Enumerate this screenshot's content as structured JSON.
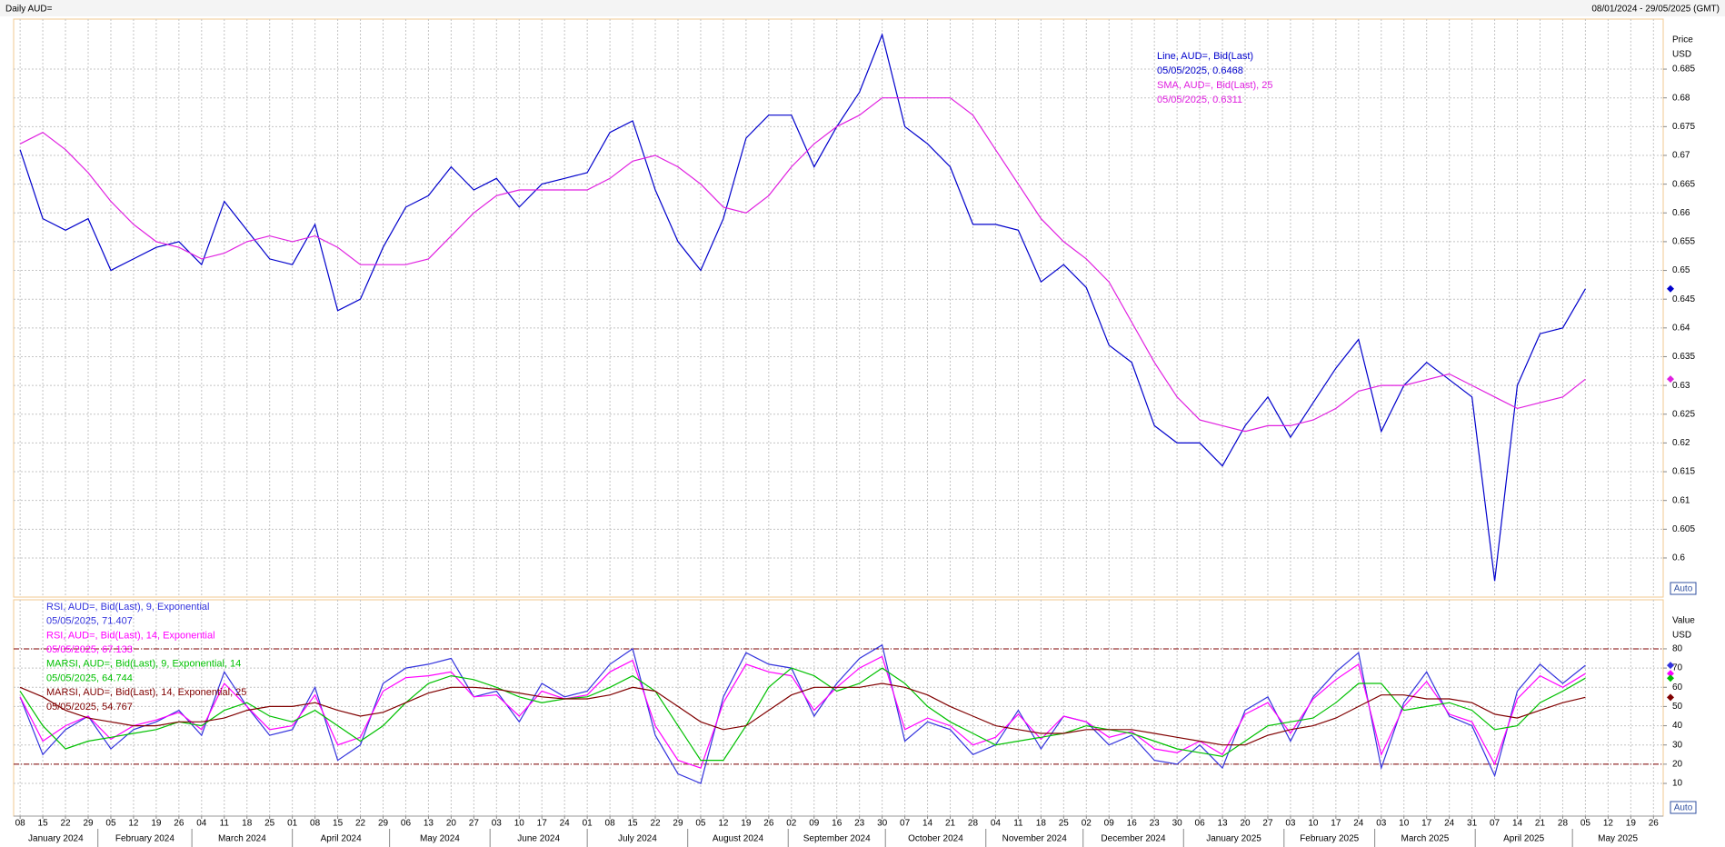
{
  "header": {
    "title": "Daily AUD=",
    "range": "08/01/2024 - 29/05/2025 (GMT)"
  },
  "chart_data": [
    {
      "type": "line",
      "ylabel": "Price",
      "yunit": "USD",
      "auto_button": "Auto",
      "xlim": [
        "2024-01-06",
        "2025-05-29"
      ],
      "x": [
        "2024-01-08",
        "2024-01-15",
        "2024-01-22",
        "2024-01-29",
        "2024-02-05",
        "2024-02-12",
        "2024-02-19",
        "2024-02-26",
        "2024-03-04",
        "2024-03-11",
        "2024-03-18",
        "2024-03-25",
        "2024-04-01",
        "2024-04-08",
        "2024-04-15",
        "2024-04-22",
        "2024-04-29",
        "2024-05-06",
        "2024-05-13",
        "2024-05-20",
        "2024-05-27",
        "2024-06-03",
        "2024-06-10",
        "2024-06-17",
        "2024-06-24",
        "2024-07-01",
        "2024-07-08",
        "2024-07-15",
        "2024-07-22",
        "2024-07-29",
        "2024-08-05",
        "2024-08-12",
        "2024-08-19",
        "2024-08-26",
        "2024-09-02",
        "2024-09-09",
        "2024-09-16",
        "2024-09-23",
        "2024-09-30",
        "2024-10-07",
        "2024-10-14",
        "2024-10-21",
        "2024-10-28",
        "2024-11-04",
        "2024-11-11",
        "2024-11-18",
        "2024-11-25",
        "2024-12-02",
        "2024-12-09",
        "2024-12-16",
        "2024-12-23",
        "2024-12-30",
        "2025-01-06",
        "2025-01-13",
        "2025-01-20",
        "2025-01-27",
        "2025-02-03",
        "2025-02-10",
        "2025-02-17",
        "2025-02-24",
        "2025-03-03",
        "2025-03-10",
        "2025-03-17",
        "2025-03-24",
        "2025-03-31",
        "2025-04-07",
        "2025-04-14",
        "2025-04-21",
        "2025-04-28",
        "2025-05-05"
      ],
      "ylim": [
        0.5932,
        0.6937
      ],
      "yticks": [
        0.6,
        0.605,
        0.61,
        0.615,
        0.62,
        0.625,
        0.63,
        0.635,
        0.64,
        0.645,
        0.65,
        0.655,
        0.66,
        0.665,
        0.67,
        0.675,
        0.68,
        0.685
      ],
      "grid": true,
      "series": [
        {
          "name": "Line, AUD=, Bid(Last)",
          "legend_value": "05/05/2025, 0.6468",
          "color": "#0000cc",
          "values": [
            0.671,
            0.659,
            0.657,
            0.659,
            0.65,
            0.652,
            0.654,
            0.655,
            0.651,
            0.662,
            0.657,
            0.652,
            0.651,
            0.658,
            0.643,
            0.645,
            0.654,
            0.661,
            0.663,
            0.668,
            0.664,
            0.666,
            0.661,
            0.665,
            0.666,
            0.667,
            0.674,
            0.676,
            0.664,
            0.655,
            0.65,
            0.659,
            0.673,
            0.677,
            0.677,
            0.668,
            0.675,
            0.681,
            0.691,
            0.675,
            0.672,
            0.668,
            0.658,
            0.658,
            0.657,
            0.648,
            0.651,
            0.647,
            0.637,
            0.634,
            0.623,
            0.62,
            0.62,
            0.616,
            0.623,
            0.628,
            0.621,
            0.627,
            0.633,
            0.638,
            0.622,
            0.63,
            0.634,
            0.631,
            0.628,
            0.596,
            0.63,
            0.639,
            0.64,
            0.6468
          ]
        },
        {
          "name": "SMA, AUD=, Bid(Last),  25",
          "legend_value": "05/05/2025, 0.6311",
          "color": "#e020e0",
          "values": [
            0.672,
            0.674,
            0.671,
            0.667,
            0.662,
            0.658,
            0.655,
            0.654,
            0.652,
            0.653,
            0.655,
            0.656,
            0.655,
            0.656,
            0.654,
            0.651,
            0.651,
            0.651,
            0.652,
            0.656,
            0.66,
            0.663,
            0.664,
            0.664,
            0.664,
            0.664,
            0.666,
            0.669,
            0.67,
            0.668,
            0.665,
            0.661,
            0.66,
            0.663,
            0.668,
            0.672,
            0.675,
            0.677,
            0.68,
            0.68,
            0.68,
            0.68,
            0.677,
            0.671,
            0.665,
            0.659,
            0.655,
            0.652,
            0.648,
            0.641,
            0.634,
            0.628,
            0.624,
            0.623,
            0.622,
            0.623,
            0.623,
            0.624,
            0.626,
            0.629,
            0.63,
            0.63,
            0.631,
            0.632,
            0.63,
            0.628,
            0.626,
            0.627,
            0.628,
            0.6311
          ]
        }
      ]
    },
    {
      "type": "line",
      "ylabel": "Value",
      "yunit": "USD",
      "auto_button": "Auto",
      "xlim": [
        "2024-01-06",
        "2025-05-29"
      ],
      "x": [
        "2024-01-08",
        "2024-01-15",
        "2024-01-22",
        "2024-01-29",
        "2024-02-05",
        "2024-02-12",
        "2024-02-19",
        "2024-02-26",
        "2024-03-04",
        "2024-03-11",
        "2024-03-18",
        "2024-03-25",
        "2024-04-01",
        "2024-04-08",
        "2024-04-15",
        "2024-04-22",
        "2024-04-29",
        "2024-05-06",
        "2024-05-13",
        "2024-05-20",
        "2024-05-27",
        "2024-06-03",
        "2024-06-10",
        "2024-06-17",
        "2024-06-24",
        "2024-07-01",
        "2024-07-08",
        "2024-07-15",
        "2024-07-22",
        "2024-07-29",
        "2024-08-05",
        "2024-08-12",
        "2024-08-19",
        "2024-08-26",
        "2024-09-02",
        "2024-09-09",
        "2024-09-16",
        "2024-09-23",
        "2024-09-30",
        "2024-10-07",
        "2024-10-14",
        "2024-10-21",
        "2024-10-28",
        "2024-11-04",
        "2024-11-11",
        "2024-11-18",
        "2024-11-25",
        "2024-12-02",
        "2024-12-09",
        "2024-12-16",
        "2024-12-23",
        "2024-12-30",
        "2025-01-06",
        "2025-01-13",
        "2025-01-20",
        "2025-01-27",
        "2025-02-03",
        "2025-02-10",
        "2025-02-17",
        "2025-02-24",
        "2025-03-03",
        "2025-03-10",
        "2025-03-17",
        "2025-03-24",
        "2025-03-31",
        "2025-04-07",
        "2025-04-14",
        "2025-04-21",
        "2025-04-28",
        "2025-05-05"
      ],
      "ylim": [
        -7,
        105.5
      ],
      "yticks": [
        10,
        20,
        30,
        40,
        50,
        60,
        70,
        80
      ],
      "levels": [
        80,
        20
      ],
      "level_color": "#800000",
      "grid": true,
      "series": [
        {
          "name": "RSI, AUD=, Bid(Last),  9, Exponential",
          "legend_value": "05/05/2025, 71.407",
          "color": "#3333dd",
          "values": [
            55,
            25,
            38,
            45,
            28,
            38,
            42,
            48,
            35,
            68,
            50,
            35,
            38,
            60,
            22,
            30,
            62,
            70,
            72,
            75,
            55,
            58,
            42,
            62,
            55,
            58,
            72,
            80,
            35,
            15,
            10,
            55,
            78,
            72,
            70,
            45,
            62,
            75,
            82,
            32,
            42,
            38,
            25,
            30,
            48,
            28,
            45,
            42,
            30,
            35,
            22,
            20,
            30,
            18,
            48,
            55,
            32,
            55,
            68,
            78,
            18,
            52,
            68,
            45,
            40,
            14,
            58,
            72,
            62,
            71.407
          ]
        },
        {
          "name": "RSI, AUD=, Bid(Last),  14, Exponential",
          "legend_value": "05/05/2025, 67.133",
          "color": "#ff00ff",
          "values": [
            55,
            32,
            40,
            45,
            33,
            40,
            43,
            47,
            38,
            62,
            50,
            38,
            40,
            56,
            30,
            34,
            58,
            65,
            66,
            68,
            55,
            56,
            45,
            58,
            54,
            56,
            68,
            74,
            40,
            22,
            18,
            52,
            72,
            68,
            66,
            48,
            60,
            70,
            76,
            38,
            44,
            40,
            30,
            34,
            46,
            33,
            45,
            42,
            34,
            37,
            28,
            26,
            32,
            25,
            46,
            52,
            36,
            54,
            64,
            72,
            25,
            50,
            63,
            46,
            42,
            20,
            54,
            66,
            60,
            67.133
          ]
        },
        {
          "name": "MARSI, AUD=, Bid(Last),  9, Exponential, 14",
          "legend_value": "05/05/2025, 64.744",
          "color": "#00c000",
          "values": [
            58,
            40,
            28,
            32,
            34,
            36,
            38,
            42,
            40,
            48,
            52,
            45,
            42,
            48,
            40,
            32,
            40,
            52,
            62,
            66,
            64,
            60,
            55,
            52,
            54,
            55,
            60,
            66,
            58,
            40,
            22,
            22,
            40,
            60,
            70,
            66,
            58,
            62,
            70,
            62,
            50,
            42,
            36,
            30,
            32,
            34,
            36,
            40,
            38,
            36,
            32,
            28,
            26,
            24,
            32,
            40,
            42,
            44,
            52,
            62,
            62,
            48,
            50,
            52,
            48,
            38,
            40,
            52,
            58,
            64.744
          ]
        },
        {
          "name": "MARSI, AUD=, Bid(Last),  14, Exponential, 25",
          "legend_value": "05/05/2025, 54.767",
          "color": "#800000",
          "values": [
            60,
            55,
            48,
            44,
            42,
            40,
            40,
            42,
            42,
            44,
            48,
            50,
            50,
            52,
            48,
            45,
            47,
            52,
            57,
            60,
            60,
            59,
            57,
            55,
            54,
            54,
            56,
            60,
            58,
            50,
            42,
            38,
            40,
            48,
            56,
            60,
            60,
            60,
            62,
            60,
            56,
            50,
            45,
            40,
            38,
            36,
            36,
            38,
            38,
            38,
            36,
            34,
            32,
            30,
            30,
            35,
            38,
            40,
            44,
            50,
            56,
            56,
            54,
            54,
            52,
            46,
            44,
            48,
            52,
            54.767
          ]
        }
      ],
      "xticks": [
        {
          "value": "2024-01-08",
          "label": "08"
        },
        {
          "value": "2024-01-15",
          "label": "15"
        },
        {
          "value": "2024-01-22",
          "label": "22"
        },
        {
          "value": "2024-01-29",
          "label": "29"
        },
        {
          "value": "2024-02-05",
          "label": "05"
        },
        {
          "value": "2024-02-12",
          "label": "12"
        },
        {
          "value": "2024-02-19",
          "label": "19"
        },
        {
          "value": "2024-02-26",
          "label": "26"
        },
        {
          "value": "2024-03-04",
          "label": "04"
        },
        {
          "value": "2024-03-11",
          "label": "11"
        },
        {
          "value": "2024-03-18",
          "label": "18"
        },
        {
          "value": "2024-03-25",
          "label": "25"
        },
        {
          "value": "2024-04-01",
          "label": "01"
        },
        {
          "value": "2024-04-08",
          "label": "08"
        },
        {
          "value": "2024-04-15",
          "label": "15"
        },
        {
          "value": "2024-04-22",
          "label": "22"
        },
        {
          "value": "2024-04-29",
          "label": "29"
        },
        {
          "value": "2024-05-06",
          "label": "06"
        },
        {
          "value": "2024-05-13",
          "label": "13"
        },
        {
          "value": "2024-05-20",
          "label": "20"
        },
        {
          "value": "2024-05-27",
          "label": "27"
        },
        {
          "value": "2024-06-03",
          "label": "03"
        },
        {
          "value": "2024-06-10",
          "label": "10"
        },
        {
          "value": "2024-06-17",
          "label": "17"
        },
        {
          "value": "2024-06-24",
          "label": "24"
        },
        {
          "value": "2024-07-01",
          "label": "01"
        },
        {
          "value": "2024-07-08",
          "label": "08"
        },
        {
          "value": "2024-07-15",
          "label": "15"
        },
        {
          "value": "2024-07-22",
          "label": "22"
        },
        {
          "value": "2024-07-29",
          "label": "29"
        },
        {
          "value": "2024-08-05",
          "label": "05"
        },
        {
          "value": "2024-08-12",
          "label": "12"
        },
        {
          "value": "2024-08-19",
          "label": "19"
        },
        {
          "value": "2024-08-26",
          "label": "26"
        },
        {
          "value": "2024-09-02",
          "label": "02"
        },
        {
          "value": "2024-09-09",
          "label": "09"
        },
        {
          "value": "2024-09-16",
          "label": "16"
        },
        {
          "value": "2024-09-23",
          "label": "23"
        },
        {
          "value": "2024-09-30",
          "label": "30"
        },
        {
          "value": "2024-10-07",
          "label": "07"
        },
        {
          "value": "2024-10-14",
          "label": "14"
        },
        {
          "value": "2024-10-21",
          "label": "21"
        },
        {
          "value": "2024-10-28",
          "label": "28"
        },
        {
          "value": "2024-11-04",
          "label": "04"
        },
        {
          "value": "2024-11-11",
          "label": "11"
        },
        {
          "value": "2024-11-18",
          "label": "18"
        },
        {
          "value": "2024-11-25",
          "label": "25"
        },
        {
          "value": "2024-12-02",
          "label": "02"
        },
        {
          "value": "2024-12-09",
          "label": "09"
        },
        {
          "value": "2024-12-16",
          "label": "16"
        },
        {
          "value": "2024-12-23",
          "label": "23"
        },
        {
          "value": "2024-12-30",
          "label": "30"
        },
        {
          "value": "2025-01-06",
          "label": "06"
        },
        {
          "value": "2025-01-13",
          "label": "13"
        },
        {
          "value": "2025-01-20",
          "label": "20"
        },
        {
          "value": "2025-01-27",
          "label": "27"
        },
        {
          "value": "2025-02-03",
          "label": "03"
        },
        {
          "value": "2025-02-10",
          "label": "10"
        },
        {
          "value": "2025-02-17",
          "label": "17"
        },
        {
          "value": "2025-02-24",
          "label": "24"
        },
        {
          "value": "2025-03-03",
          "label": "03"
        },
        {
          "value": "2025-03-10",
          "label": "10"
        },
        {
          "value": "2025-03-17",
          "label": "17"
        },
        {
          "value": "2025-03-24",
          "label": "24"
        },
        {
          "value": "2025-03-31",
          "label": "31"
        },
        {
          "value": "2025-04-07",
          "label": "07"
        },
        {
          "value": "2025-04-14",
          "label": "14"
        },
        {
          "value": "2025-04-21",
          "label": "21"
        },
        {
          "value": "2025-04-28",
          "label": "28"
        },
        {
          "value": "2025-05-05",
          "label": "05"
        },
        {
          "value": "2025-05-12",
          "label": "12"
        },
        {
          "value": "2025-05-19",
          "label": "19"
        },
        {
          "value": "2025-05-26",
          "label": "26"
        }
      ],
      "xmonths": [
        {
          "value": "2024-01",
          "label": "January 2024"
        },
        {
          "value": "2024-02",
          "label": "February 2024"
        },
        {
          "value": "2024-03",
          "label": "March 2024"
        },
        {
          "value": "2024-04",
          "label": "April 2024"
        },
        {
          "value": "2024-05",
          "label": "May 2024"
        },
        {
          "value": "2024-06",
          "label": "June 2024"
        },
        {
          "value": "2024-07",
          "label": "July 2024"
        },
        {
          "value": "2024-08",
          "label": "August 2024"
        },
        {
          "value": "2024-09",
          "label": "September 2024"
        },
        {
          "value": "2024-10",
          "label": "October 2024"
        },
        {
          "value": "2024-11",
          "label": "November 2024"
        },
        {
          "value": "2024-12",
          "label": "December 2024"
        },
        {
          "value": "2025-01",
          "label": "January 2025"
        },
        {
          "value": "2025-02",
          "label": "February 2025"
        },
        {
          "value": "2025-03",
          "label": "March 2025"
        },
        {
          "value": "2025-04",
          "label": "April 2025"
        },
        {
          "value": "2025-05",
          "label": "May 2025"
        }
      ]
    }
  ]
}
